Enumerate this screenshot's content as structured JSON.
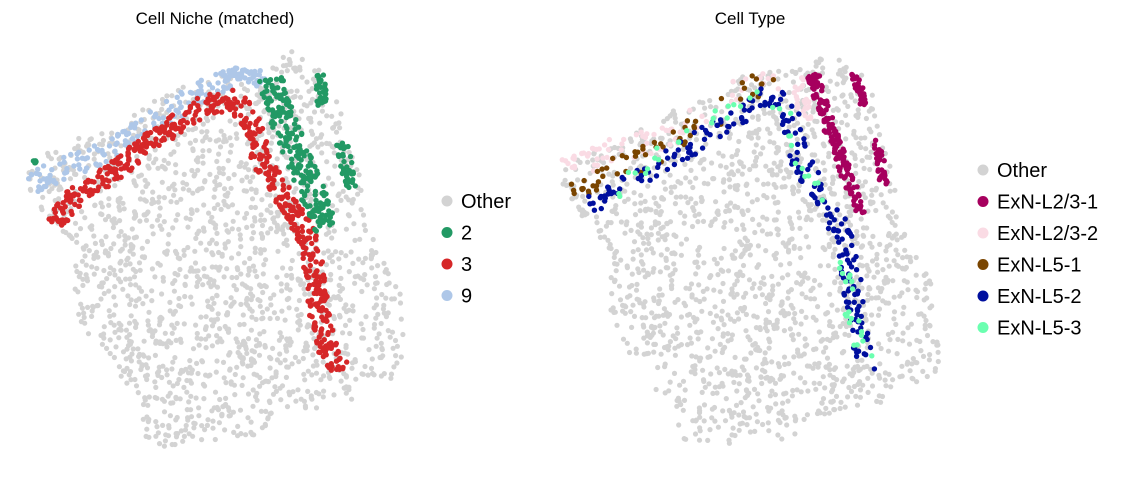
{
  "chart_data": [
    {
      "type": "scatter",
      "title": "Cell Niche (matched)",
      "legend_placement": "right",
      "grid": false,
      "axes_visible": false,
      "legend": [
        {
          "label": "Other",
          "color": "#d3d3d3"
        },
        {
          "label": "2",
          "color": "#229964"
        },
        {
          "label": "3",
          "color": "#d62728"
        },
        {
          "label": "9",
          "color": "#aec7e8"
        }
      ]
    },
    {
      "type": "scatter",
      "title": "Cell Type",
      "legend_placement": "right",
      "grid": false,
      "axes_visible": false,
      "legend": [
        {
          "label": "Other",
          "color": "#d3d3d3"
        },
        {
          "label": "ExN-L2/3-1",
          "color": "#a6005e"
        },
        {
          "label": "ExN-L2/3-2",
          "color": "#fadbe4"
        },
        {
          "label": "ExN-L5-1",
          "color": "#7a4500"
        },
        {
          "label": "ExN-L5-2",
          "color": "#000f9e"
        },
        {
          "label": "ExN-L5-3",
          "color": "#6bffb0"
        }
      ]
    }
  ]
}
